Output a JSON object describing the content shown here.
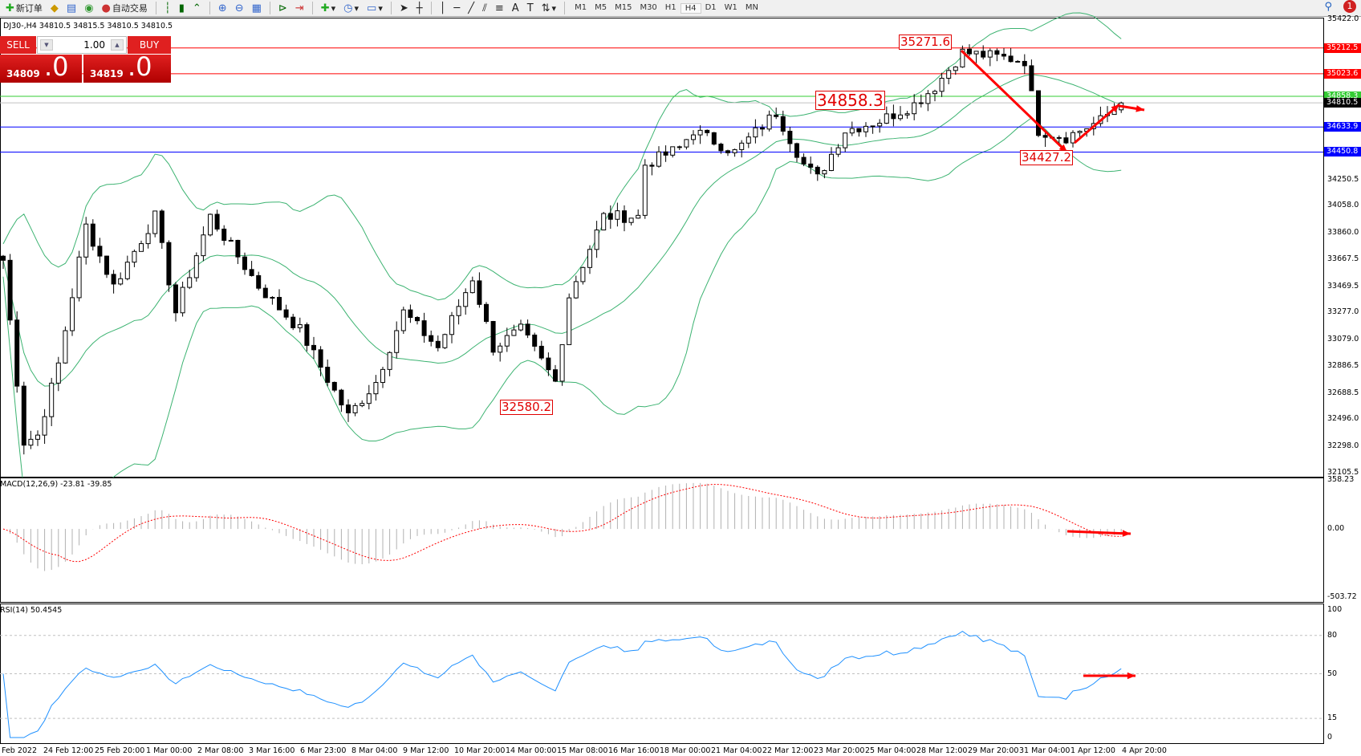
{
  "toolbar": {
    "new_order": "新订单",
    "auto_trading": "自动交易",
    "timeframes": [
      "M1",
      "M5",
      "M15",
      "M30",
      "H1",
      "H4",
      "D1",
      "W1",
      "MN"
    ],
    "active_timeframe": "H4",
    "notifications": "1",
    "icons": [
      "new-order-icon",
      "gold-icon",
      "terminal-icon",
      "signal-icon",
      "auto-trading-icon",
      "bar-chart-icon",
      "candlestick-icon",
      "line-chart-icon",
      "zoom-in-icon",
      "zoom-out-icon",
      "tile-windows-icon",
      "autoscroll-icon",
      "chart-shift-icon",
      "indicators-icon",
      "periods-icon",
      "templates-icon",
      "cursor-icon",
      "crosshair-icon",
      "vertical-line-icon",
      "horizontal-line-icon",
      "trendline-icon",
      "equidistant-channel-icon",
      "fibonacci-icon",
      "text-icon",
      "text-label-icon",
      "arrows-icon"
    ]
  },
  "chart": {
    "header": "DJ30-,H4  34810.5 34815.5 34810.5 34810.5",
    "one_click": {
      "sell": "SELL",
      "buy": "BUY",
      "lot": "1.00",
      "sell_price_small": "34809",
      "sell_price_big": ".0",
      "buy_price_small": "34819",
      "buy_price_big": ".0"
    },
    "price_axis": [
      "35422.0",
      "34250.5",
      "34058.0",
      "33860.0",
      "33667.5",
      "33469.5",
      "33277.0",
      "33079.0",
      "32886.5",
      "32688.5",
      "32496.0",
      "32298.0",
      "32105.5"
    ],
    "levels": [
      {
        "price": 35212.5,
        "label": "35212.5",
        "color": "#ff0000"
      },
      {
        "price": 35023.6,
        "label": "35023.6",
        "color": "#ff0000"
      },
      {
        "price": 34858.3,
        "label": "34858.3",
        "color": "#33cc33"
      },
      {
        "price": 34810.5,
        "label": "34810.5",
        "color": "#000000"
      },
      {
        "price": 34633.9,
        "label": "34633.9",
        "color": "#0000ff"
      },
      {
        "price": 34450.8,
        "label": "34450.8",
        "color": "#0000ff"
      }
    ],
    "annotations": [
      "35271.6",
      "34858.3",
      "34427.2",
      "32580.2"
    ],
    "time_axis": [
      "Feb 2022",
      "24 Feb 12:00",
      "25 Feb 20:00",
      "1 Mar 00:00",
      "2 Mar 08:00",
      "3 Mar 16:00",
      "6 Mar 23:00",
      "8 Mar 04:00",
      "9 Mar 12:00",
      "10 Mar 20:00",
      "14 Mar 00:00",
      "15 Mar 08:00",
      "16 Mar 16:00",
      "18 Mar 00:00",
      "21 Mar 04:00",
      "22 Mar 12:00",
      "23 Mar 20:00",
      "25 Mar 04:00",
      "28 Mar 12:00",
      "29 Mar 20:00",
      "31 Mar 04:00",
      "1 Apr 12:00",
      "4 Apr 20:00"
    ]
  },
  "macd": {
    "label": "MACD(12,26,9) -23.81 -39.85",
    "axis": [
      "358.23",
      "0.00",
      "-503.72"
    ]
  },
  "rsi": {
    "label": "RSI(14) 50.4545",
    "axis": [
      "100",
      "80",
      "50",
      "15",
      "0"
    ]
  },
  "chart_data": {
    "type": "candlestick",
    "symbol": "DJ30-",
    "timeframe": "H4",
    "ylim": [
      32105.5,
      35422.0
    ],
    "close_path": [
      [
        0,
        33660
      ],
      [
        3,
        32330
      ],
      [
        5,
        32380
      ],
      [
        8,
        32900
      ],
      [
        12,
        33910
      ],
      [
        16,
        33470
      ],
      [
        22,
        33980
      ],
      [
        25,
        33280
      ],
      [
        30,
        33980
      ],
      [
        37,
        33470
      ],
      [
        43,
        33150
      ],
      [
        50,
        32520
      ],
      [
        54,
        32770
      ],
      [
        58,
        33280
      ],
      [
        63,
        33020
      ],
      [
        68,
        33530
      ],
      [
        71,
        33020
      ],
      [
        75,
        33150
      ],
      [
        80,
        32770
      ],
      [
        82,
        33400
      ],
      [
        87,
        33980
      ],
      [
        92,
        33980
      ],
      [
        93,
        34360
      ],
      [
        98,
        34480
      ],
      [
        100,
        34610
      ],
      [
        106,
        34450
      ],
      [
        112,
        34740
      ],
      [
        116,
        34360
      ],
      [
        118,
        34260
      ],
      [
        122,
        34610
      ],
      [
        127,
        34680
      ],
      [
        132,
        34800
      ],
      [
        135,
        34930
      ],
      [
        139,
        35180
      ],
      [
        148,
        35120
      ],
      [
        150,
        34610
      ],
      [
        154,
        34560
      ],
      [
        159,
        34680
      ],
      [
        162,
        34810
      ]
    ],
    "indicators": [
      "Bollinger Bands(20,2)",
      "MACD(12,26,9)",
      "RSI(14)"
    ]
  }
}
